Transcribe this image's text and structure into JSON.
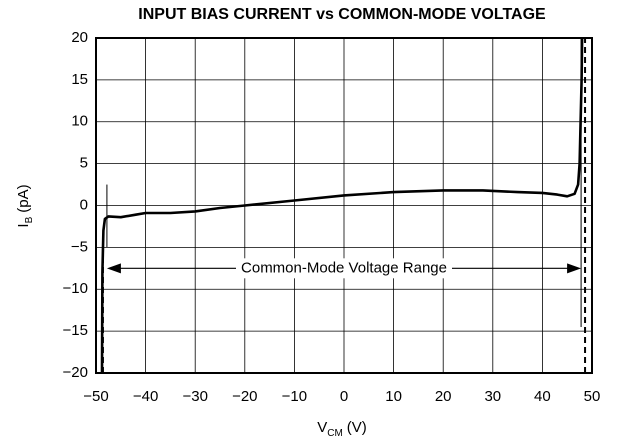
{
  "chart_data": {
    "type": "line",
    "title": "INPUT BIAS CURRENT vs COMMON-MODE VOLTAGE",
    "x_label": [
      "V",
      "CM",
      "(V)"
    ],
    "y_label": [
      "I",
      "B",
      "(pA)"
    ],
    "xlim": [
      -50,
      50
    ],
    "ylim": [
      -20,
      20
    ],
    "xticks": [
      {
        "value": -50,
        "label": "−50"
      },
      {
        "value": -40,
        "label": "−40"
      },
      {
        "value": -30,
        "label": "−30"
      },
      {
        "value": -20,
        "label": "−20"
      },
      {
        "value": -10,
        "label": "−10"
      },
      0,
      10,
      20,
      30,
      40,
      50
    ],
    "yticks": [
      {
        "value": -20,
        "label": "−20"
      },
      {
        "value": -15,
        "label": "−15"
      },
      {
        "value": -10,
        "label": "−10"
      },
      {
        "value": -5,
        "label": "−5"
      },
      0,
      5,
      10,
      15,
      20
    ],
    "grid": true,
    "series": [
      {
        "color": "#000000",
        "x": [
          -48.8,
          -48.7,
          -48.5,
          -48.2,
          -47.5,
          -45,
          -42,
          -40,
          -35,
          -30,
          -25,
          -20,
          -10,
          0,
          10,
          20,
          28,
          35,
          40,
          43,
          45,
          46.5,
          47.2,
          47.5,
          47.7,
          47.9,
          48.0
        ],
        "values": [
          -20,
          -8,
          -3,
          -1.6,
          -1.3,
          -1.4,
          -1.1,
          -0.9,
          -0.9,
          -0.7,
          -0.3,
          0,
          0.6,
          1.2,
          1.6,
          1.8,
          1.8,
          1.6,
          1.5,
          1.3,
          1.1,
          1.4,
          2.5,
          5,
          10,
          15,
          20
        ]
      }
    ],
    "range_arrow": {
      "text": "Common-Mode Voltage Range",
      "x": [
        -47.8,
        47.8
      ],
      "y": -7.5
    },
    "limit_lines": [
      {
        "x": -47.8,
        "y": [
          -5,
          2.5
        ]
      },
      {
        "x": 47.8,
        "y": [
          -14.5,
          20
        ]
      }
    ],
    "dashed_lines": [
      {
        "x": -48.6,
        "y": [
          -20,
          -5
        ]
      },
      {
        "x": 48.6,
        "y": [
          -20,
          20
        ]
      }
    ]
  }
}
